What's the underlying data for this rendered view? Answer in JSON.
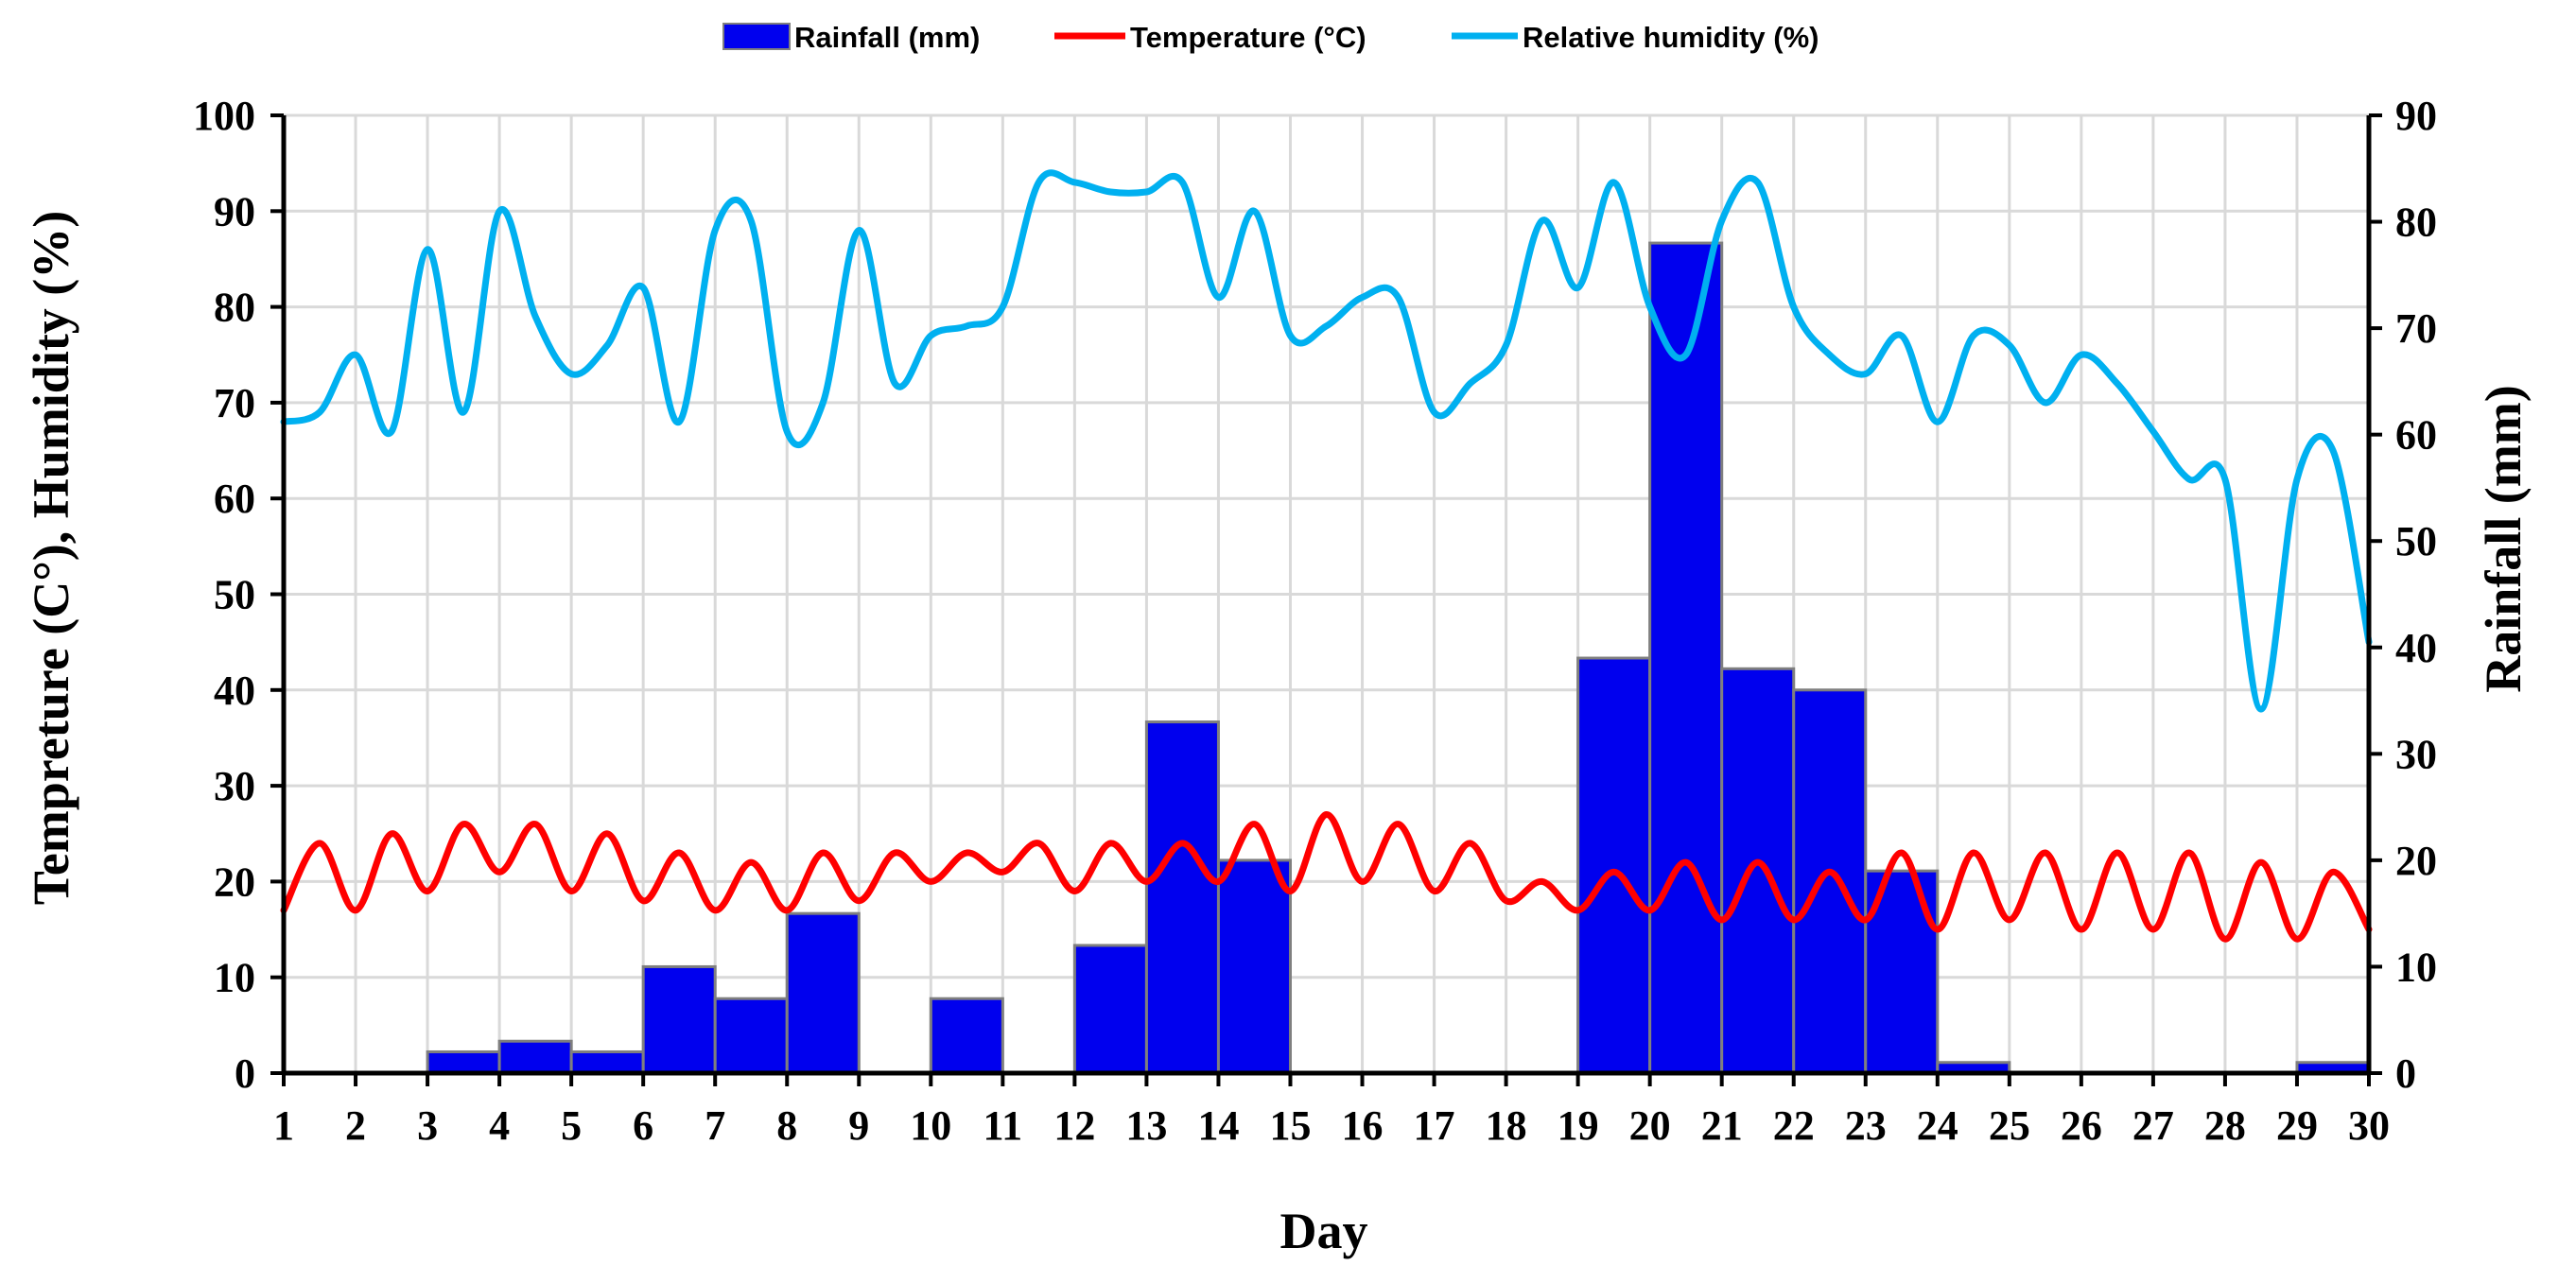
{
  "chart_data": {
    "type": "bar",
    "title": "",
    "xlabel": "Day",
    "ylabel_left": "Tempreture (C°), Humidity (%)",
    "ylabel_right": "Rainfall (mm)",
    "ylim_left": [
      0,
      100
    ],
    "ylim_right": [
      0,
      90
    ],
    "yticks_left": [
      0,
      10,
      20,
      30,
      40,
      50,
      60,
      70,
      80,
      90,
      100
    ],
    "yticks_right": [
      0,
      10,
      20,
      30,
      40,
      50,
      60,
      70,
      80,
      90
    ],
    "x_ticks": [
      1,
      2,
      3,
      4,
      5,
      6,
      7,
      8,
      9,
      10,
      11,
      12,
      13,
      14,
      15,
      16,
      17,
      18,
      19,
      20,
      21,
      22,
      23,
      24,
      25,
      26,
      27,
      28,
      29,
      30
    ],
    "grid": true,
    "legend_position": "top-center",
    "legend": [
      {
        "label": "Rainfall (mm)",
        "kind": "bar",
        "color": "#0000ee"
      },
      {
        "label": "Temperature (°C)",
        "kind": "line",
        "color": "#ff0000"
      },
      {
        "label": "Relative humidity (%)",
        "kind": "line",
        "color": "#00b0f0"
      }
    ],
    "series": [
      {
        "name": "Rainfall (mm)",
        "axis": "right",
        "type": "bar",
        "color": "#0000ee",
        "x": [
          3.5,
          4.5,
          5.5,
          6.5,
          7.5,
          8.5,
          10.5,
          12.5,
          13.5,
          14.5,
          19.5,
          20.5,
          21.5,
          22.5,
          23.5,
          24.5,
          29.5
        ],
        "values": [
          2,
          3,
          2,
          10,
          7,
          15,
          7,
          12,
          33,
          20,
          39,
          78,
          38,
          36,
          19,
          1,
          1
        ]
      },
      {
        "name": "Temperature (°C)",
        "axis": "left",
        "type": "line",
        "color": "#ff0000",
        "x": [
          1,
          1.5,
          2,
          2.5,
          3,
          3.5,
          4,
          4.5,
          5,
          5.5,
          6,
          6.5,
          7,
          7.5,
          8,
          8.5,
          9,
          9.5,
          10,
          10.5,
          11,
          11.5,
          12,
          12.5,
          13,
          13.5,
          14,
          14.5,
          15,
          15.5,
          16,
          16.5,
          17,
          17.5,
          18,
          18.5,
          19,
          19.5,
          20,
          20.5,
          21,
          21.5,
          22,
          22.5,
          23,
          23.5,
          24,
          24.5,
          25,
          25.5,
          26,
          26.5,
          27,
          27.5,
          28,
          28.5,
          29,
          29.5,
          30
        ],
        "values": [
          17,
          24,
          17,
          25,
          19,
          26,
          21,
          26,
          19,
          25,
          18,
          23,
          17,
          22,
          17,
          23,
          18,
          23,
          20,
          23,
          21,
          24,
          19,
          24,
          20,
          24,
          20,
          26,
          19,
          27,
          20,
          26,
          19,
          24,
          18,
          20,
          17,
          21,
          17,
          22,
          16,
          22,
          16,
          21,
          16,
          23,
          15,
          23,
          16,
          23,
          15,
          23,
          15,
          23,
          14,
          22,
          14,
          21,
          15
        ]
      },
      {
        "name": "Relative humidity (%)",
        "axis": "left",
        "type": "line",
        "color": "#00b0f0",
        "x": [
          1,
          1.5,
          2,
          2.5,
          3,
          3.5,
          4,
          4.5,
          5,
          5.5,
          6,
          6.5,
          7,
          7.5,
          8,
          8.5,
          9,
          9.5,
          10,
          10.5,
          11,
          11.5,
          12,
          12.5,
          13,
          13.5,
          14,
          14.5,
          15,
          15.5,
          16,
          16.5,
          17,
          17.5,
          18,
          18.5,
          19,
          19.5,
          20,
          20.5,
          21,
          21.5,
          22,
          22.5,
          23,
          23.5,
          24,
          24.5,
          25,
          25.5,
          26,
          26.5,
          27,
          27.5,
          28,
          28.5,
          29,
          29.5,
          30
        ],
        "values": [
          68,
          69,
          75,
          67,
          86,
          69,
          90,
          79,
          73,
          76,
          82,
          68,
          88,
          89,
          67,
          70,
          88,
          72,
          77,
          78,
          80,
          93,
          93,
          92,
          92,
          93,
          81,
          90,
          77,
          78,
          81,
          81,
          69,
          72,
          76,
          89,
          82,
          93,
          80,
          75,
          89,
          93,
          80,
          75,
          73,
          77,
          68,
          77,
          76,
          70,
          75,
          72,
          67,
          62,
          62,
          38,
          62,
          65,
          45
        ]
      }
    ]
  }
}
